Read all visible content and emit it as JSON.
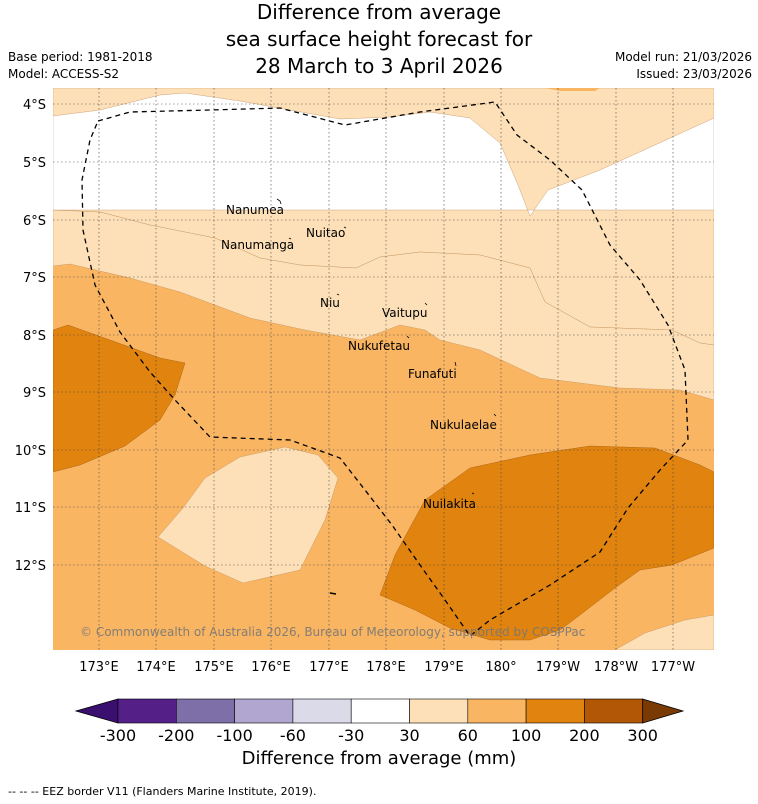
{
  "title": {
    "line1": "Difference from average",
    "line2": "sea surface height forecast for",
    "line3": "28 March to 3 April 2026"
  },
  "meta_left": {
    "base_period": "Base period: 1981-2018",
    "model": "Model: ACCESS-S2"
  },
  "meta_right": {
    "model_run": "Model run: 21/03/2026",
    "issued": "Issued: 23/03/2026"
  },
  "lat_ticks": [
    "4°S",
    "5°S",
    "6°S",
    "7°S",
    "8°S",
    "9°S",
    "10°S",
    "11°S",
    "12°S"
  ],
  "lon_ticks": [
    "173°E",
    "174°E",
    "175°E",
    "176°E",
    "177°E",
    "178°E",
    "179°E",
    "180°",
    "179°W",
    "178°W",
    "177°W"
  ],
  "places": [
    "Nanumea",
    "Nuitao",
    "Nanumanga",
    "Niu",
    "Vaitupu",
    "Nukufetau",
    "Funafuti",
    "Nukulaelae",
    "Nuilakita"
  ],
  "copyright": "© Commonwealth of Australia 2026, Bureau of Meteorology, supported by COSPPac",
  "colorbar": {
    "labels": [
      "-300",
      "-200",
      "-100",
      "-60",
      "-30",
      "30",
      "60",
      "100",
      "200",
      "300"
    ],
    "colors": [
      "#3b0f6f",
      "#542088",
      "#7f6fa8",
      "#b0a6d0",
      "#dadae9",
      "#ffffff",
      "#fde0b7",
      "#f9b562",
      "#e0830f",
      "#b15705",
      "#7a3a04"
    ],
    "title": "Difference from average (mm)"
  },
  "footnote": "--  --  -- EEZ border V11 (Flanders Marine Institute, 2019)."
}
